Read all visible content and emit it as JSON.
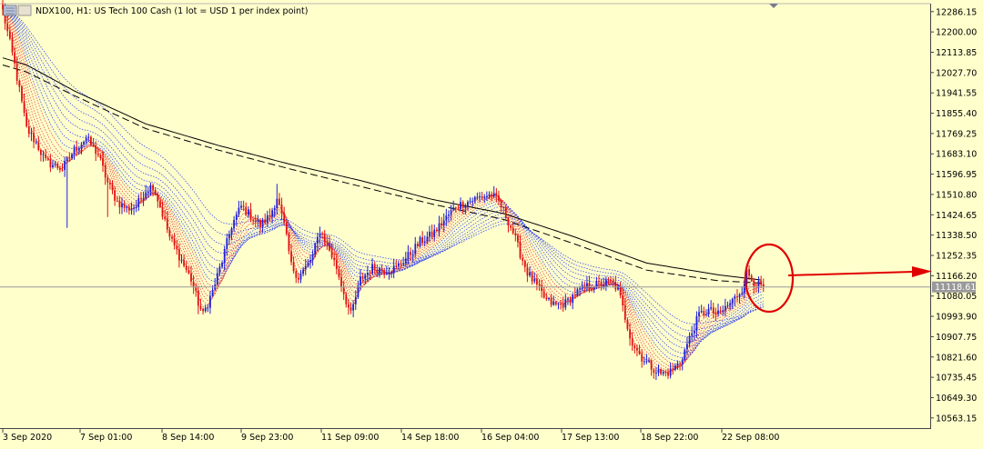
{
  "header": {
    "title": "NDX100, H1:  US Tech 100 Cash (1 lot = USD 1 per index point)"
  },
  "price_label": "11118.61",
  "colors": {
    "background": "#ffffcc",
    "bull": "#1f1fd8",
    "bear": "#e01010",
    "ma_fast_down": "#e83030",
    "ma_slow_down": "#2a3aee",
    "ema_long": "#000000",
    "annotation": "#e00000",
    "price_line": "#9a9a9a",
    "price_tag": "#999999"
  },
  "chart_data": {
    "type": "candlestick",
    "symbol": "NDX100",
    "timeframe": "H1",
    "ylim": [
      10520,
      12320
    ],
    "y_ticks": [
      "12286.15",
      "12200.00",
      "12113.85",
      "12027.70",
      "11941.55",
      "11855.40",
      "11769.25",
      "11683.10",
      "11596.95",
      "11510.80",
      "11424.65",
      "11338.50",
      "11252.35",
      "11166.20",
      "11080.05",
      "10993.90",
      "10907.75",
      "10821.60",
      "10735.45",
      "10649.30",
      "10563.15"
    ],
    "x_ticks": [
      "3 Sep 2020",
      "7 Sep 01:00",
      "8 Sep 14:00",
      "9 Sep 23:00",
      "11 Sep 09:00",
      "14 Sep 18:00",
      "16 Sep 04:00",
      "17 Sep 13:00",
      "18 Sep 22:00",
      "22 Sep 08:00"
    ],
    "current_price": 11118.61,
    "path_points": [
      [
        0,
        12290
      ],
      [
        5,
        12060
      ],
      [
        10,
        11790
      ],
      [
        14,
        11730
      ],
      [
        18,
        11650
      ],
      [
        25,
        11620
      ],
      [
        30,
        11700
      ],
      [
        35,
        11750
      ],
      [
        40,
        11680
      ],
      [
        44,
        11560
      ],
      [
        48,
        11480
      ],
      [
        52,
        11450
      ],
      [
        56,
        11460
      ],
      [
        60,
        11530
      ],
      [
        63,
        11550
      ],
      [
        66,
        11460
      ],
      [
        70,
        11330
      ],
      [
        75,
        11230
      ],
      [
        79,
        11150
      ],
      [
        82,
        11050
      ],
      [
        84,
        11000
      ],
      [
        88,
        11100
      ],
      [
        92,
        11230
      ],
      [
        96,
        11380
      ],
      [
        100,
        11460
      ],
      [
        104,
        11420
      ],
      [
        108,
        11380
      ],
      [
        112,
        11420
      ],
      [
        115,
        11500
      ],
      [
        118,
        11380
      ],
      [
        121,
        11210
      ],
      [
        124,
        11160
      ],
      [
        127,
        11200
      ],
      [
        130,
        11250
      ],
      [
        133,
        11360
      ],
      [
        136,
        11300
      ],
      [
        140,
        11200
      ],
      [
        144,
        11060
      ],
      [
        146,
        11000
      ],
      [
        150,
        11150
      ],
      [
        155,
        11200
      ],
      [
        160,
        11190
      ],
      [
        165,
        11200
      ],
      [
        170,
        11250
      ],
      [
        175,
        11310
      ],
      [
        180,
        11340
      ],
      [
        185,
        11400
      ],
      [
        190,
        11460
      ],
      [
        195,
        11480
      ],
      [
        200,
        11500
      ],
      [
        205,
        11510
      ],
      [
        208,
        11480
      ],
      [
        211,
        11420
      ],
      [
        214,
        11350
      ],
      [
        217,
        11260
      ],
      [
        220,
        11180
      ],
      [
        224,
        11120
      ],
      [
        228,
        11060
      ],
      [
        232,
        11040
      ],
      [
        236,
        11050
      ],
      [
        240,
        11090
      ],
      [
        245,
        11120
      ],
      [
        250,
        11130
      ],
      [
        255,
        11140
      ],
      [
        258,
        11110
      ],
      [
        261,
        10990
      ],
      [
        264,
        10880
      ],
      [
        268,
        10820
      ],
      [
        272,
        10780
      ],
      [
        276,
        10750
      ],
      [
        280,
        10760
      ],
      [
        284,
        10800
      ],
      [
        288,
        10900
      ],
      [
        292,
        11000
      ],
      [
        296,
        11020
      ],
      [
        300,
        11000
      ],
      [
        304,
        11040
      ],
      [
        307,
        11070
      ],
      [
        310,
        11110
      ],
      [
        312,
        11180
      ],
      [
        315,
        11140
      ],
      [
        318,
        11118
      ]
    ],
    "ema_short_points": [
      [
        0,
        12090
      ],
      [
        10,
        12060
      ],
      [
        30,
        11950
      ],
      [
        60,
        11810
      ],
      [
        90,
        11720
      ],
      [
        120,
        11640
      ],
      [
        150,
        11570
      ],
      [
        180,
        11490
      ],
      [
        210,
        11430
      ],
      [
        240,
        11330
      ],
      [
        270,
        11220
      ],
      [
        300,
        11170
      ],
      [
        318,
        11148
      ]
    ],
    "ema_long_points": [
      [
        0,
        12060
      ],
      [
        10,
        12030
      ],
      [
        30,
        11930
      ],
      [
        60,
        11790
      ],
      [
        90,
        11700
      ],
      [
        120,
        11620
      ],
      [
        150,
        11545
      ],
      [
        180,
        11470
      ],
      [
        210,
        11405
      ],
      [
        240,
        11300
      ],
      [
        270,
        11190
      ],
      [
        300,
        11145
      ],
      [
        318,
        11135
      ]
    ],
    "annotations": [
      {
        "type": "circle",
        "around": "latest bars"
      },
      {
        "type": "arrow",
        "to": "11166.20"
      }
    ]
  }
}
